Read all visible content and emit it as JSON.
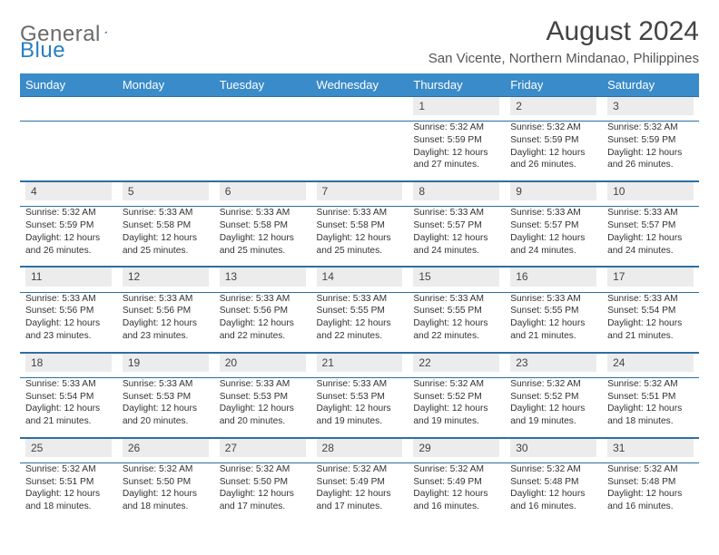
{
  "logo": {
    "part1": "General",
    "part2": "Blue"
  },
  "title": "August 2024",
  "location": "San Vicente, Northern Mindanao, Philippines",
  "colors": {
    "header_bg": "#3a8bc9",
    "header_text": "#ffffff",
    "daynum_bg": "#ececec",
    "row_border": "#2d6fa3",
    "logo_gray": "#6a6a6a",
    "logo_blue": "#2a7fbf"
  },
  "day_headers": [
    "Sunday",
    "Monday",
    "Tuesday",
    "Wednesday",
    "Thursday",
    "Friday",
    "Saturday"
  ],
  "weeks": [
    [
      null,
      null,
      null,
      null,
      {
        "n": "1",
        "sunrise": "Sunrise: 5:32 AM",
        "sunset": "Sunset: 5:59 PM",
        "daylight": "Daylight: 12 hours and 27 minutes."
      },
      {
        "n": "2",
        "sunrise": "Sunrise: 5:32 AM",
        "sunset": "Sunset: 5:59 PM",
        "daylight": "Daylight: 12 hours and 26 minutes."
      },
      {
        "n": "3",
        "sunrise": "Sunrise: 5:32 AM",
        "sunset": "Sunset: 5:59 PM",
        "daylight": "Daylight: 12 hours and 26 minutes."
      }
    ],
    [
      {
        "n": "4",
        "sunrise": "Sunrise: 5:32 AM",
        "sunset": "Sunset: 5:59 PM",
        "daylight": "Daylight: 12 hours and 26 minutes."
      },
      {
        "n": "5",
        "sunrise": "Sunrise: 5:33 AM",
        "sunset": "Sunset: 5:58 PM",
        "daylight": "Daylight: 12 hours and 25 minutes."
      },
      {
        "n": "6",
        "sunrise": "Sunrise: 5:33 AM",
        "sunset": "Sunset: 5:58 PM",
        "daylight": "Daylight: 12 hours and 25 minutes."
      },
      {
        "n": "7",
        "sunrise": "Sunrise: 5:33 AM",
        "sunset": "Sunset: 5:58 PM",
        "daylight": "Daylight: 12 hours and 25 minutes."
      },
      {
        "n": "8",
        "sunrise": "Sunrise: 5:33 AM",
        "sunset": "Sunset: 5:57 PM",
        "daylight": "Daylight: 12 hours and 24 minutes."
      },
      {
        "n": "9",
        "sunrise": "Sunrise: 5:33 AM",
        "sunset": "Sunset: 5:57 PM",
        "daylight": "Daylight: 12 hours and 24 minutes."
      },
      {
        "n": "10",
        "sunrise": "Sunrise: 5:33 AM",
        "sunset": "Sunset: 5:57 PM",
        "daylight": "Daylight: 12 hours and 24 minutes."
      }
    ],
    [
      {
        "n": "11",
        "sunrise": "Sunrise: 5:33 AM",
        "sunset": "Sunset: 5:56 PM",
        "daylight": "Daylight: 12 hours and 23 minutes."
      },
      {
        "n": "12",
        "sunrise": "Sunrise: 5:33 AM",
        "sunset": "Sunset: 5:56 PM",
        "daylight": "Daylight: 12 hours and 23 minutes."
      },
      {
        "n": "13",
        "sunrise": "Sunrise: 5:33 AM",
        "sunset": "Sunset: 5:56 PM",
        "daylight": "Daylight: 12 hours and 22 minutes."
      },
      {
        "n": "14",
        "sunrise": "Sunrise: 5:33 AM",
        "sunset": "Sunset: 5:55 PM",
        "daylight": "Daylight: 12 hours and 22 minutes."
      },
      {
        "n": "15",
        "sunrise": "Sunrise: 5:33 AM",
        "sunset": "Sunset: 5:55 PM",
        "daylight": "Daylight: 12 hours and 22 minutes."
      },
      {
        "n": "16",
        "sunrise": "Sunrise: 5:33 AM",
        "sunset": "Sunset: 5:55 PM",
        "daylight": "Daylight: 12 hours and 21 minutes."
      },
      {
        "n": "17",
        "sunrise": "Sunrise: 5:33 AM",
        "sunset": "Sunset: 5:54 PM",
        "daylight": "Daylight: 12 hours and 21 minutes."
      }
    ],
    [
      {
        "n": "18",
        "sunrise": "Sunrise: 5:33 AM",
        "sunset": "Sunset: 5:54 PM",
        "daylight": "Daylight: 12 hours and 21 minutes."
      },
      {
        "n": "19",
        "sunrise": "Sunrise: 5:33 AM",
        "sunset": "Sunset: 5:53 PM",
        "daylight": "Daylight: 12 hours and 20 minutes."
      },
      {
        "n": "20",
        "sunrise": "Sunrise: 5:33 AM",
        "sunset": "Sunset: 5:53 PM",
        "daylight": "Daylight: 12 hours and 20 minutes."
      },
      {
        "n": "21",
        "sunrise": "Sunrise: 5:33 AM",
        "sunset": "Sunset: 5:53 PM",
        "daylight": "Daylight: 12 hours and 19 minutes."
      },
      {
        "n": "22",
        "sunrise": "Sunrise: 5:32 AM",
        "sunset": "Sunset: 5:52 PM",
        "daylight": "Daylight: 12 hours and 19 minutes."
      },
      {
        "n": "23",
        "sunrise": "Sunrise: 5:32 AM",
        "sunset": "Sunset: 5:52 PM",
        "daylight": "Daylight: 12 hours and 19 minutes."
      },
      {
        "n": "24",
        "sunrise": "Sunrise: 5:32 AM",
        "sunset": "Sunset: 5:51 PM",
        "daylight": "Daylight: 12 hours and 18 minutes."
      }
    ],
    [
      {
        "n": "25",
        "sunrise": "Sunrise: 5:32 AM",
        "sunset": "Sunset: 5:51 PM",
        "daylight": "Daylight: 12 hours and 18 minutes."
      },
      {
        "n": "26",
        "sunrise": "Sunrise: 5:32 AM",
        "sunset": "Sunset: 5:50 PM",
        "daylight": "Daylight: 12 hours and 18 minutes."
      },
      {
        "n": "27",
        "sunrise": "Sunrise: 5:32 AM",
        "sunset": "Sunset: 5:50 PM",
        "daylight": "Daylight: 12 hours and 17 minutes."
      },
      {
        "n": "28",
        "sunrise": "Sunrise: 5:32 AM",
        "sunset": "Sunset: 5:49 PM",
        "daylight": "Daylight: 12 hours and 17 minutes."
      },
      {
        "n": "29",
        "sunrise": "Sunrise: 5:32 AM",
        "sunset": "Sunset: 5:49 PM",
        "daylight": "Daylight: 12 hours and 16 minutes."
      },
      {
        "n": "30",
        "sunrise": "Sunrise: 5:32 AM",
        "sunset": "Sunset: 5:48 PM",
        "daylight": "Daylight: 12 hours and 16 minutes."
      },
      {
        "n": "31",
        "sunrise": "Sunrise: 5:32 AM",
        "sunset": "Sunset: 5:48 PM",
        "daylight": "Daylight: 12 hours and 16 minutes."
      }
    ]
  ]
}
